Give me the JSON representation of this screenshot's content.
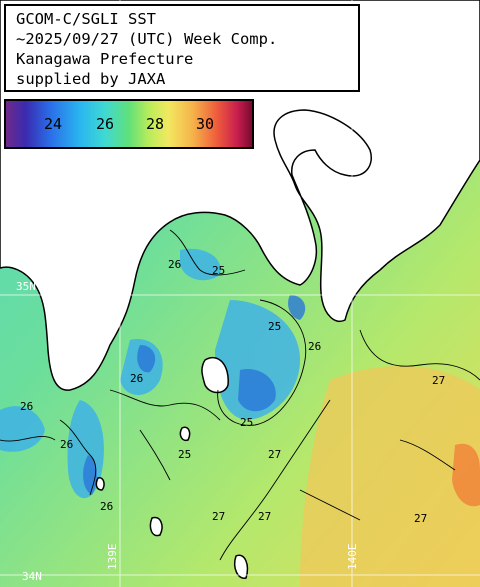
{
  "title": {
    "line1": "GCOM-C/SGLI SST",
    "line2": "~2025/09/27 (UTC) Week Comp.",
    "line3": "Kanagawa Prefecture",
    "line4": "supplied by JAXA"
  },
  "colorbar": {
    "ticks": [
      "24",
      "26",
      "28",
      "30"
    ],
    "colors": [
      "#6f2a8a",
      "#2a6ee8",
      "#3ed9d4",
      "#60e07a",
      "#f2e860",
      "#ee5a3c",
      "#7a0a30"
    ]
  },
  "grid": {
    "lat_label": "35N",
    "lon_labels": [
      "139E",
      "140E"
    ],
    "lat_label_bottom": "34N"
  },
  "contours": [
    "26",
    "25",
    "25",
    "26",
    "26",
    "26",
    "25",
    "25",
    "26",
    "27",
    "26",
    "27",
    "27",
    "27",
    "27"
  ],
  "colors": {
    "land": "#ffffff",
    "sea_base": "#5fd9b0",
    "warm": "#f0d060",
    "cool": "#3a9ae8",
    "coast": "#000000"
  }
}
